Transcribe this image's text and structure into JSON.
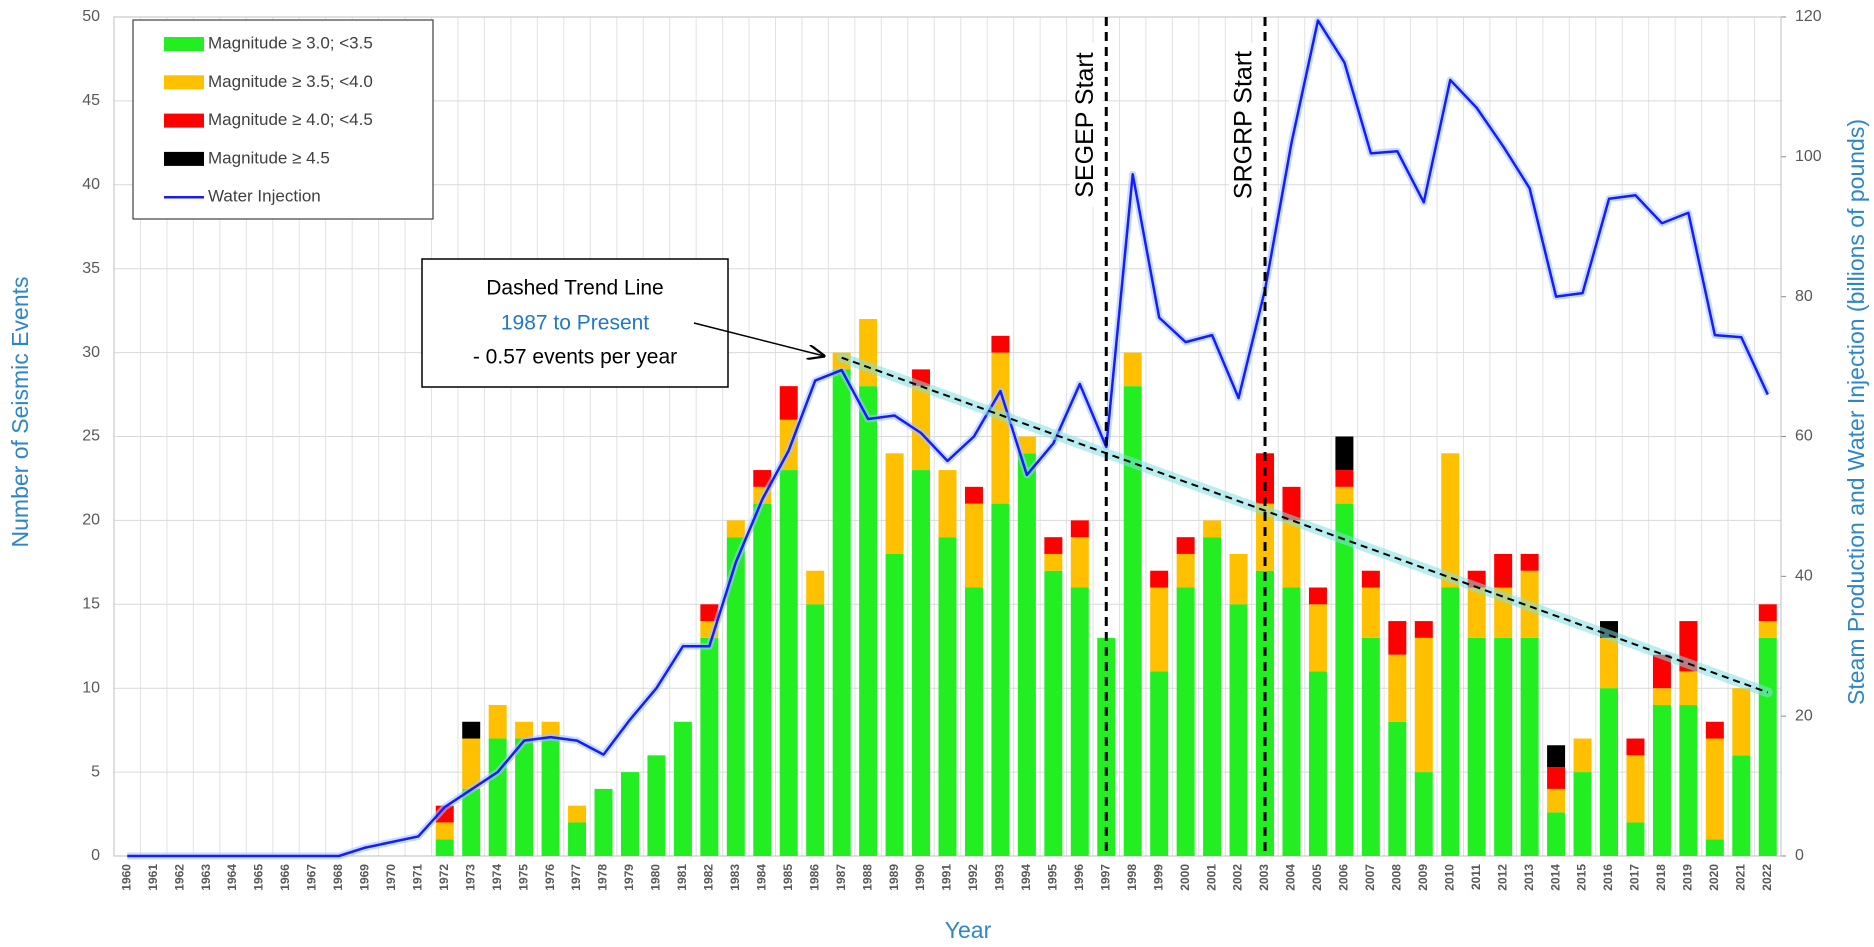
{
  "chart_data": {
    "type": "bar",
    "stacked": true,
    "x_label": "Year",
    "y_label": "Number of Seismic Events",
    "y2_label": "Steam Production and Water Injection (billions of pounds)",
    "categories": [
      "1960",
      "1961",
      "1962",
      "1963",
      "1964",
      "1965",
      "1966",
      "1967",
      "1968",
      "1969",
      "1970",
      "1971",
      "1972",
      "1973",
      "1974",
      "1975",
      "1976",
      "1977",
      "1978",
      "1979",
      "1980",
      "1981",
      "1982",
      "1983",
      "1984",
      "1985",
      "1986",
      "1987",
      "1988",
      "1989",
      "1990",
      "1991",
      "1992",
      "1993",
      "1994",
      "1995",
      "1996",
      "1997",
      "1998",
      "1999",
      "2000",
      "2001",
      "2002",
      "2003",
      "2004",
      "2005",
      "2006",
      "2007",
      "2008",
      "2009",
      "2010",
      "2011",
      "2012",
      "2013",
      "2014",
      "2015",
      "2016",
      "2017",
      "2018",
      "2019",
      "2020",
      "2021",
      "2022"
    ],
    "series": [
      {
        "name": "Magnitude ≥ 3.0; <3.5",
        "color": "#22ee22",
        "values": [
          0,
          0,
          0,
          0,
          0,
          0,
          0,
          0,
          0,
          0,
          0,
          0,
          1,
          4,
          7,
          7,
          7,
          2,
          4,
          5,
          6,
          8,
          13,
          19,
          21,
          23,
          15,
          29,
          28,
          18,
          23,
          19,
          16,
          21,
          24,
          17,
          16,
          13,
          28,
          11,
          16,
          19,
          15,
          17,
          16,
          11,
          21,
          13,
          8,
          5,
          16,
          13,
          13,
          13,
          2.6,
          5,
          10,
          2,
          9,
          9,
          1,
          6,
          13
        ]
      },
      {
        "name": "Magnitude ≥ 3.5; <4.0",
        "color": "#ffc000",
        "values": [
          0,
          0,
          0,
          0,
          0,
          0,
          0,
          0,
          0,
          0,
          0,
          0,
          1,
          3,
          2,
          1,
          1,
          1,
          0,
          0,
          0,
          0,
          1,
          1,
          1,
          3,
          2,
          1,
          4,
          6,
          5,
          4,
          5,
          9,
          1,
          1,
          3,
          0,
          2,
          5,
          2,
          1,
          3,
          4,
          4,
          4,
          1,
          3,
          4,
          8,
          8,
          3,
          3,
          4,
          1.4,
          2,
          3,
          4,
          1,
          2,
          6,
          4,
          1
        ]
      },
      {
        "name": "Magnitude ≥ 4.0; <4.5",
        "color": "#ff0000",
        "values": [
          0,
          0,
          0,
          0,
          0,
          0,
          0,
          0,
          0,
          0,
          0,
          0,
          1,
          0,
          0,
          0,
          0,
          0,
          0,
          0,
          0,
          0,
          1,
          0,
          1,
          2,
          0,
          0,
          0,
          0,
          1,
          0,
          1,
          1,
          0,
          1,
          1,
          0,
          0,
          1,
          1,
          0,
          0,
          3,
          2,
          1,
          1,
          1,
          2,
          1,
          0,
          1,
          2,
          1,
          1.3,
          0,
          0,
          1,
          2,
          3,
          1,
          0,
          1
        ]
      },
      {
        "name": "Magnitude ≥ 4.5",
        "color": "#000000",
        "values": [
          0,
          0,
          0,
          0,
          0,
          0,
          0,
          0,
          0,
          0,
          0,
          0,
          0,
          1,
          0,
          0,
          0,
          0,
          0,
          0,
          0,
          0,
          0,
          0,
          0,
          0,
          0,
          0,
          0,
          0,
          0,
          0,
          0,
          0,
          0,
          0,
          0,
          0,
          0,
          0,
          0,
          0,
          0,
          0,
          0,
          0,
          2,
          0,
          0,
          0,
          0,
          0,
          0,
          0,
          1.3,
          0,
          1,
          0,
          0,
          0,
          0,
          0,
          0
        ]
      },
      {
        "name": "Water Injection",
        "color": "#1a1aff",
        "axis": "y2",
        "values": [
          0,
          0,
          0,
          0,
          0,
          0,
          0,
          0,
          0,
          1.2,
          2,
          2.8,
          7,
          9.5,
          12,
          16.5,
          17,
          16.5,
          14.5,
          19.5,
          24,
          30,
          30,
          42,
          51,
          58,
          68,
          69.5,
          62.5,
          63,
          60.5,
          56.5,
          60,
          66.5,
          54.5,
          59,
          67.5,
          58.5,
          97.5,
          77,
          73.5,
          74.5,
          65.5,
          81,
          102,
          119.5,
          113.5,
          100.5,
          100.8,
          93.5,
          111,
          107,
          101.5,
          95.5,
          80,
          80.5,
          94,
          94.5,
          90.5,
          92,
          74.5,
          74.2,
          66
        ]
      }
    ],
    "ylim": [
      0,
      50
    ],
    "yticks": [
      0,
      5,
      10,
      15,
      20,
      25,
      30,
      35,
      40,
      45,
      50
    ],
    "y2lim": [
      0,
      120
    ],
    "y2ticks": [
      0,
      20,
      40,
      60,
      80,
      100,
      120
    ],
    "grid": true,
    "legend": "upper left",
    "trend_line": {
      "x": [
        "1987",
        "2022"
      ],
      "values": [
        29.7,
        9.75
      ]
    },
    "markers": [
      {
        "label": "SEGEP Start",
        "x": "1997"
      },
      {
        "label": "SRGRP Start",
        "x": "2003"
      }
    ],
    "annotation": [
      "Dashed Trend Line",
      "1987 to Present",
      "- 0.57 events per year"
    ]
  }
}
